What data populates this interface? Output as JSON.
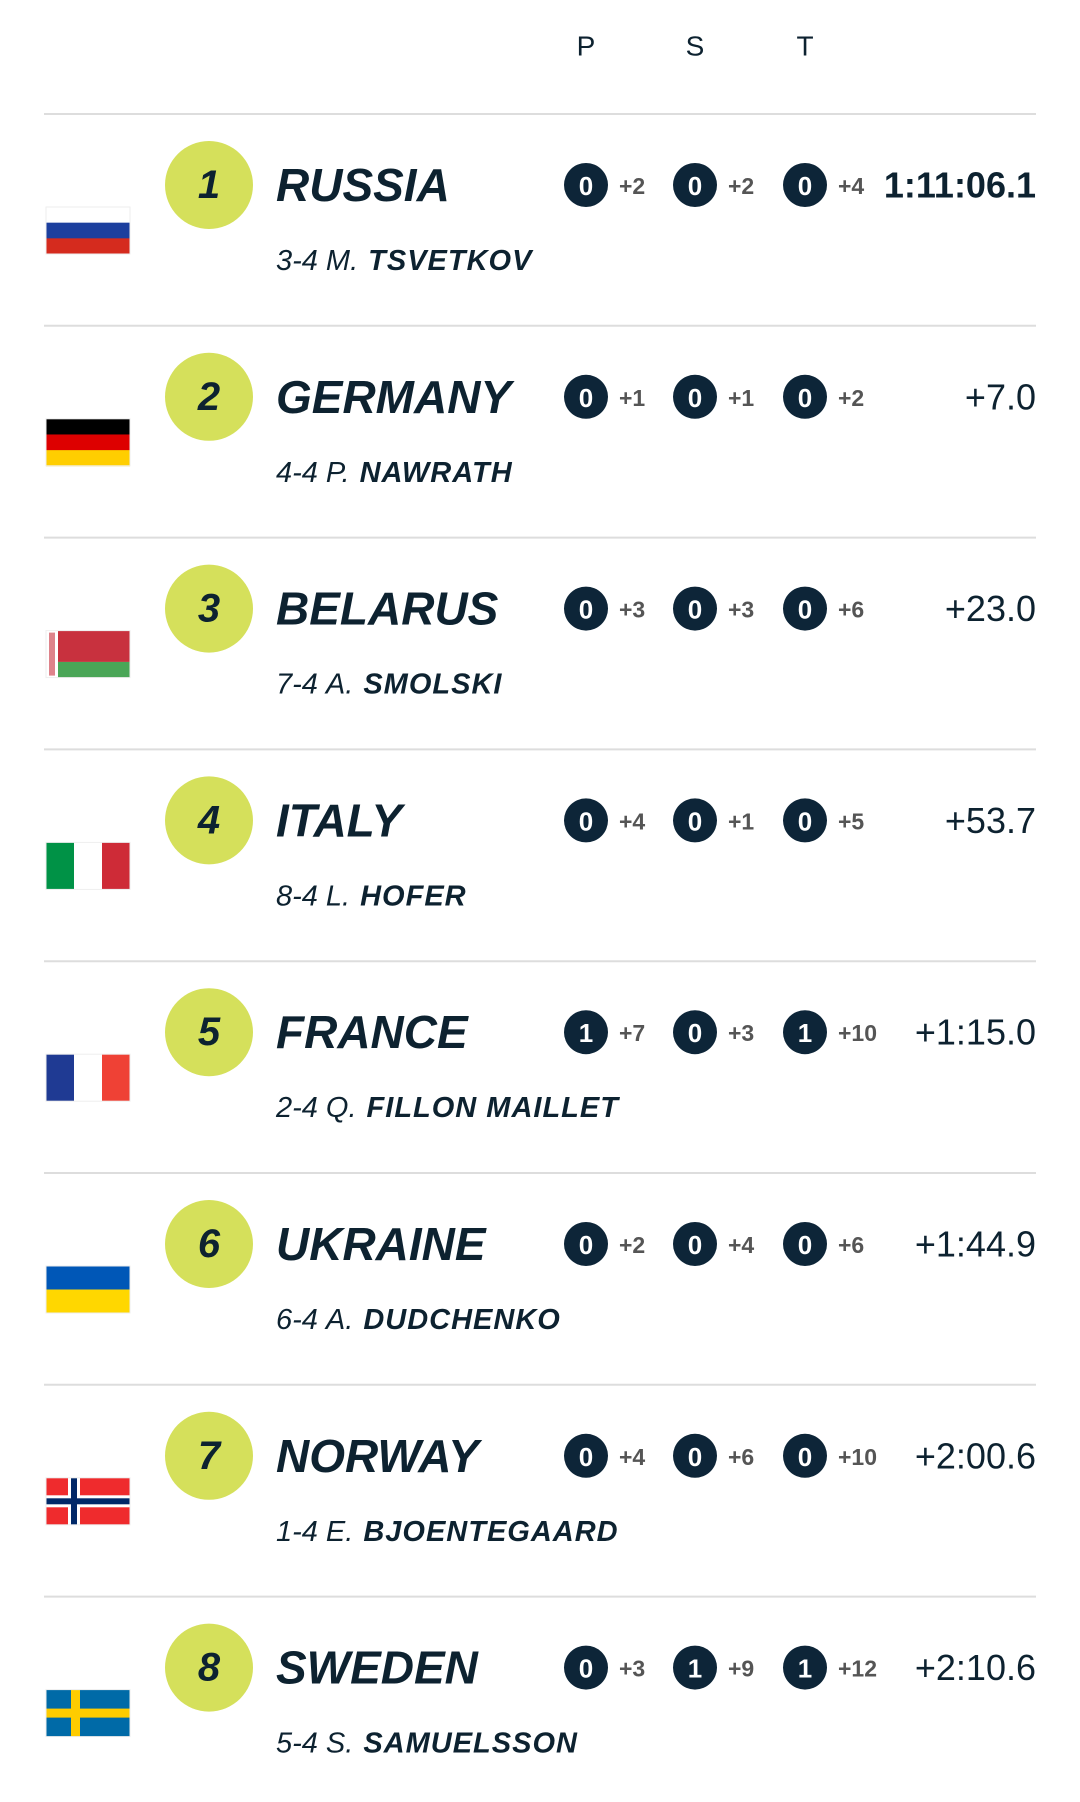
{
  "header": {
    "columns": [
      "P",
      "S",
      "T"
    ]
  },
  "rows": [
    {
      "rank": "1",
      "country": "RUSSIA",
      "leg": "3-4",
      "initial": "M.",
      "surname": "TSVETKOV",
      "shooting": [
        [
          "0",
          "+2"
        ],
        [
          "0",
          "+2"
        ],
        [
          "0",
          "+4"
        ]
      ],
      "time": "1:11:06.1"
    },
    {
      "rank": "2",
      "country": "GERMANY",
      "leg": "4-4",
      "initial": "P.",
      "surname": "NAWRATH",
      "shooting": [
        [
          "0",
          "+1"
        ],
        [
          "0",
          "+1"
        ],
        [
          "0",
          "+2"
        ]
      ],
      "time": "+7.0"
    },
    {
      "rank": "3",
      "country": "BELARUS",
      "leg": "7-4",
      "initial": "A.",
      "surname": "SMOLSKI",
      "shooting": [
        [
          "0",
          "+3"
        ],
        [
          "0",
          "+3"
        ],
        [
          "0",
          "+6"
        ]
      ],
      "time": "+23.0"
    },
    {
      "rank": "4",
      "country": "ITALY",
      "leg": "8-4",
      "initial": "L.",
      "surname": "HOFER",
      "shooting": [
        [
          "0",
          "+4"
        ],
        [
          "0",
          "+1"
        ],
        [
          "0",
          "+5"
        ]
      ],
      "time": "+53.7"
    },
    {
      "rank": "5",
      "country": "FRANCE",
      "leg": "2-4",
      "initial": "Q.",
      "surname": "FILLON MAILLET",
      "shooting": [
        [
          "1",
          "+7"
        ],
        [
          "0",
          "+3"
        ],
        [
          "1",
          "+10"
        ]
      ],
      "time": "+1:15.0"
    },
    {
      "rank": "6",
      "country": "UKRAINE",
      "leg": "6-4",
      "initial": "A.",
      "surname": "DUDCHENKO",
      "shooting": [
        [
          "0",
          "+2"
        ],
        [
          "0",
          "+4"
        ],
        [
          "0",
          "+6"
        ]
      ],
      "time": "+1:44.9"
    },
    {
      "rank": "7",
      "country": "NORWAY",
      "leg": "1-4",
      "initial": "E.",
      "surname": "BJOENTEGAARD",
      "shooting": [
        [
          "0",
          "+4"
        ],
        [
          "0",
          "+6"
        ],
        [
          "0",
          "+10"
        ]
      ],
      "time": "+2:00.6"
    },
    {
      "rank": "8",
      "country": "SWEDEN",
      "leg": "5-4",
      "initial": "S.",
      "surname": "SAMUELSSON",
      "shooting": [
        [
          "0",
          "+3"
        ],
        [
          "1",
          "+9"
        ],
        [
          "1",
          "+12"
        ]
      ],
      "time": "+2:10.6"
    }
  ]
}
